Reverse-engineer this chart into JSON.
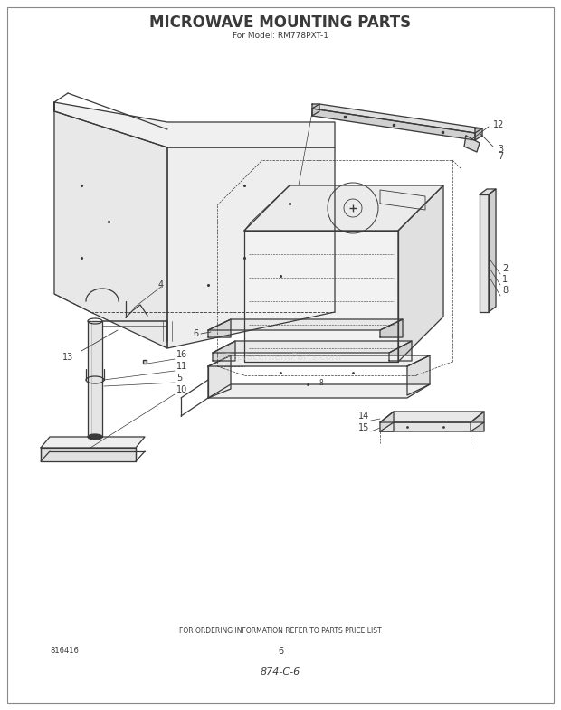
{
  "title": "MICROWAVE MOUNTING PARTS",
  "subtitle": "For Model: RM778PXT-1",
  "footer_text": "FOR ORDERING INFORMATION REFER TO PARTS PRICE LIST",
  "page_number": "6",
  "doc_number": "874-C-6",
  "part_number_bottom_left": "816416",
  "watermark": "eReplacementParts.com",
  "background_color": "#ffffff",
  "line_color": "#3a3a3a",
  "title_fontsize": 12,
  "subtitle_fontsize": 6.5,
  "footer_fontsize": 5.5,
  "label_fontsize": 7
}
